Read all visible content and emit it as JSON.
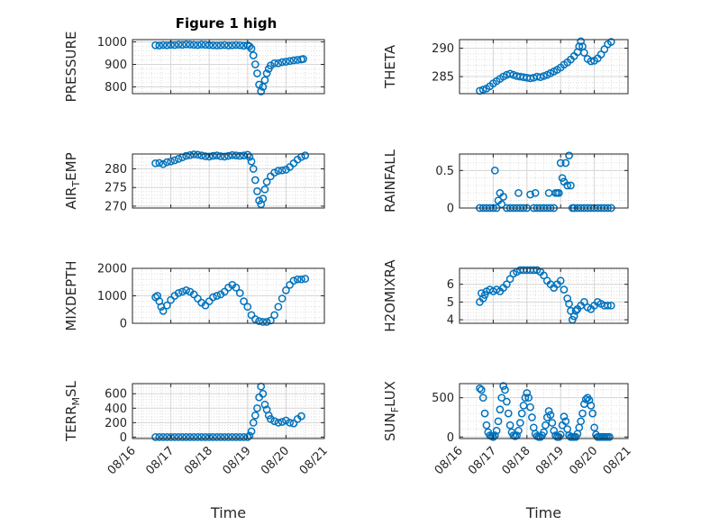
{
  "colors": {
    "marker": "#0072BD",
    "axis": "#262626",
    "grid": "#d6d6d6"
  },
  "chart_data": [
    {
      "type": "scatter",
      "title": "Figure 1 high",
      "ylabel": "PRESSURE",
      "ylim": [
        770,
        1010
      ],
      "yticks": [
        800,
        900,
        1000
      ],
      "ytick_labels": [
        "800",
        "900",
        "1000"
      ],
      "xlim": [
        "08/16",
        "08/21"
      ],
      "xtick_labels": [
        "08/16",
        "08/17",
        "08/18",
        "08/19",
        "08/20",
        "08/21"
      ],
      "xlabel": "",
      "grid": true,
      "minor_grid": true,
      "x": [
        16.6,
        16.7,
        16.8,
        16.9,
        17.0,
        17.1,
        17.2,
        17.3,
        17.4,
        17.5,
        17.6,
        17.7,
        17.8,
        17.9,
        18.0,
        18.1,
        18.2,
        18.3,
        18.4,
        18.5,
        18.6,
        18.7,
        18.8,
        18.9,
        19.0,
        19.05,
        19.1,
        19.15,
        19.2,
        19.25,
        19.3,
        19.35,
        19.4,
        19.45,
        19.5,
        19.55,
        19.6,
        19.7,
        19.8,
        19.9,
        20.0,
        20.1,
        20.2,
        20.3,
        20.4,
        20.45
      ],
      "y": [
        985,
        984,
        986,
        985,
        987,
        986,
        988,
        987,
        989,
        988,
        987,
        986,
        988,
        987,
        986,
        985,
        984,
        985,
        986,
        984,
        985,
        986,
        985,
        983,
        985,
        980,
        970,
        940,
        900,
        860,
        810,
        780,
        800,
        830,
        860,
        880,
        895,
        905,
        905,
        910,
        912,
        915,
        918,
        920,
        922,
        924
      ]
    },
    {
      "type": "scatter",
      "ylabel": "THETA",
      "ylim": [
        282,
        291.5
      ],
      "yticks": [
        285,
        290
      ],
      "ytick_labels": [
        "285",
        "290"
      ],
      "xlim": [
        "08/16",
        "08/21"
      ],
      "xtick_labels": [
        "08/16",
        "08/17",
        "08/18",
        "08/19",
        "08/20",
        "08/21"
      ],
      "xlabel": "",
      "grid": true,
      "minor_grid": true,
      "x": [
        16.6,
        16.7,
        16.8,
        16.9,
        17.0,
        17.1,
        17.2,
        17.3,
        17.4,
        17.5,
        17.6,
        17.7,
        17.8,
        17.9,
        18.0,
        18.1,
        18.2,
        18.3,
        18.4,
        18.5,
        18.6,
        18.7,
        18.8,
        18.9,
        19.0,
        19.1,
        19.2,
        19.3,
        19.4,
        19.5,
        19.55,
        19.6,
        19.65,
        19.7,
        19.8,
        19.9,
        20.0,
        20.1,
        20.2,
        20.3,
        20.4,
        20.5
      ],
      "y": [
        282.5,
        282.7,
        282.9,
        283.3,
        283.8,
        284.2,
        284.6,
        285.0,
        285.3,
        285.5,
        285.3,
        285.1,
        285.0,
        284.9,
        284.8,
        284.7,
        284.8,
        285.0,
        284.9,
        285.1,
        285.3,
        285.6,
        285.9,
        286.2,
        286.6,
        287.1,
        287.5,
        288.0,
        288.6,
        289.3,
        290.3,
        291.2,
        290.3,
        289.2,
        288.1,
        287.7,
        287.8,
        288.2,
        288.9,
        289.8,
        290.7,
        291.1
      ]
    },
    {
      "type": "scatter",
      "ylabel": "AIR_TEMP",
      "ylabel_sub": "T",
      "ylim": [
        269.5,
        284
      ],
      "yticks": [
        270,
        275,
        280
      ],
      "ytick_labels": [
        "270",
        "275",
        "280"
      ],
      "xlim": [
        "08/16",
        "08/21"
      ],
      "xtick_labels": [
        "08/16",
        "08/17",
        "08/18",
        "08/19",
        "08/20",
        "08/21"
      ],
      "xlabel": "",
      "grid": true,
      "minor_grid": true,
      "x": [
        16.6,
        16.7,
        16.8,
        16.9,
        17.0,
        17.1,
        17.2,
        17.3,
        17.4,
        17.5,
        17.6,
        17.7,
        17.8,
        17.9,
        18.0,
        18.1,
        18.2,
        18.3,
        18.4,
        18.5,
        18.6,
        18.7,
        18.8,
        18.9,
        19.0,
        19.05,
        19.1,
        19.15,
        19.2,
        19.25,
        19.3,
        19.35,
        19.4,
        19.45,
        19.5,
        19.6,
        19.7,
        19.8,
        19.9,
        20.0,
        20.1,
        20.2,
        20.3,
        20.4,
        20.5
      ],
      "y": [
        281.5,
        281.6,
        281.3,
        281.8,
        282.0,
        282.3,
        282.7,
        283.1,
        283.5,
        283.7,
        283.9,
        283.8,
        283.6,
        283.4,
        283.3,
        283.5,
        283.6,
        283.4,
        283.3,
        283.5,
        283.7,
        283.6,
        283.5,
        283.6,
        283.8,
        283.2,
        282.0,
        280.0,
        277.0,
        274.0,
        271.5,
        270.5,
        272.0,
        274.5,
        276.5,
        278.0,
        279.0,
        279.5,
        279.6,
        279.8,
        280.5,
        281.5,
        282.5,
        283.2,
        283.6
      ]
    },
    {
      "type": "scatter",
      "ylabel": "RAINFALL",
      "ylim": [
        0,
        0.72
      ],
      "yticks": [
        0,
        0.5
      ],
      "ytick_labels": [
        "0",
        "0.5"
      ],
      "xlim": [
        "08/16",
        "08/21"
      ],
      "xtick_labels": [
        "08/16",
        "08/17",
        "08/18",
        "08/19",
        "08/20",
        "08/21"
      ],
      "xlabel": "",
      "grid": true,
      "minor_grid": true,
      "x": [
        16.6,
        16.7,
        16.8,
        16.9,
        17.0,
        17.05,
        17.1,
        17.15,
        17.2,
        17.25,
        17.3,
        17.4,
        17.5,
        17.6,
        17.7,
        17.75,
        17.8,
        17.9,
        18.0,
        18.1,
        18.2,
        18.25,
        18.3,
        18.4,
        18.5,
        18.6,
        18.65,
        18.7,
        18.8,
        18.85,
        18.9,
        18.95,
        19.0,
        19.05,
        19.1,
        19.15,
        19.2,
        19.25,
        19.3,
        19.35,
        19.4,
        19.5,
        19.6,
        19.7,
        19.8,
        19.9,
        20.0,
        20.1,
        20.2,
        20.3,
        20.4,
        20.5
      ],
      "y": [
        0,
        0,
        0,
        0,
        0,
        0.5,
        0,
        0.1,
        0.2,
        0.05,
        0.15,
        0,
        0,
        0,
        0,
        0.2,
        0,
        0,
        0,
        0.18,
        0,
        0.2,
        0,
        0,
        0,
        0,
        0.2,
        0,
        0,
        0.2,
        0.2,
        0.2,
        0.6,
        0.4,
        0.35,
        0.6,
        0.3,
        0.7,
        0.3,
        0,
        0,
        0,
        0,
        0,
        0,
        0,
        0,
        0,
        0,
        0,
        0,
        0
      ]
    },
    {
      "type": "scatter",
      "ylabel": "MIXDEPTH",
      "ylim": [
        0,
        2000
      ],
      "yticks": [
        0,
        1000,
        2000
      ],
      "ytick_labels": [
        "0",
        "1000",
        "2000"
      ],
      "xlim": [
        "08/16",
        "08/21"
      ],
      "xtick_labels": [
        "08/16",
        "08/17",
        "08/18",
        "08/19",
        "08/20",
        "08/21"
      ],
      "xlabel": "",
      "grid": true,
      "minor_grid": true,
      "x": [
        16.6,
        16.65,
        16.7,
        16.75,
        16.8,
        16.9,
        17.0,
        17.1,
        17.2,
        17.3,
        17.4,
        17.5,
        17.6,
        17.7,
        17.8,
        17.9,
        18.0,
        18.1,
        18.2,
        18.3,
        18.4,
        18.5,
        18.6,
        18.7,
        18.8,
        18.9,
        19.0,
        19.1,
        19.2,
        19.3,
        19.4,
        19.5,
        19.6,
        19.7,
        19.8,
        19.9,
        20.0,
        20.1,
        20.2,
        20.3,
        20.4,
        20.5
      ],
      "y": [
        950,
        1000,
        800,
        600,
        450,
        650,
        850,
        1000,
        1100,
        1150,
        1200,
        1150,
        1050,
        900,
        750,
        650,
        800,
        950,
        1000,
        1050,
        1150,
        1300,
        1400,
        1300,
        1100,
        800,
        600,
        300,
        150,
        80,
        50,
        50,
        100,
        300,
        600,
        900,
        1200,
        1400,
        1550,
        1600,
        1600,
        1620
      ]
    },
    {
      "type": "scatter",
      "ylabel": "H2OMIXRA",
      "ylim": [
        3.8,
        6.9
      ],
      "yticks": [
        4,
        5,
        6
      ],
      "ytick_labels": [
        "4",
        "5",
        "6"
      ],
      "xlim": [
        "08/16",
        "08/21"
      ],
      "xtick_labels": [
        "08/16",
        "08/17",
        "08/18",
        "08/19",
        "08/20",
        "08/21"
      ],
      "xlabel": "",
      "grid": true,
      "minor_grid": true,
      "x": [
        16.6,
        16.65,
        16.7,
        16.75,
        16.8,
        16.9,
        17.0,
        17.1,
        17.2,
        17.3,
        17.4,
        17.5,
        17.6,
        17.7,
        17.8,
        17.9,
        18.0,
        18.1,
        18.2,
        18.3,
        18.4,
        18.5,
        18.6,
        18.7,
        18.8,
        18.9,
        19.0,
        19.1,
        19.2,
        19.25,
        19.3,
        19.35,
        19.4,
        19.45,
        19.5,
        19.6,
        19.7,
        19.8,
        19.9,
        20.0,
        20.1,
        20.2,
        20.3,
        20.4,
        20.5
      ],
      "y": [
        5.0,
        5.5,
        5.2,
        5.4,
        5.6,
        5.7,
        5.6,
        5.7,
        5.6,
        5.8,
        6.0,
        6.3,
        6.6,
        6.7,
        6.8,
        6.8,
        6.8,
        6.8,
        6.8,
        6.8,
        6.7,
        6.5,
        6.2,
        6.0,
        5.8,
        6.0,
        6.2,
        5.7,
        5.2,
        4.9,
        4.5,
        4.0,
        4.2,
        4.5,
        4.6,
        4.8,
        5.0,
        4.7,
        4.6,
        4.8,
        5.0,
        4.9,
        4.8,
        4.8,
        4.8
      ]
    },
    {
      "type": "scatter",
      "ylabel": "TERR_MSL",
      "ylabel_sub": "M",
      "ylim": [
        -20,
        740
      ],
      "yticks": [
        0,
        200,
        400,
        600
      ],
      "ytick_labels": [
        "0",
        "200",
        "400",
        "600"
      ],
      "xlim": [
        "08/16",
        "08/21"
      ],
      "xtick_labels": [
        "08/16",
        "08/17",
        "08/18",
        "08/19",
        "08/20",
        "08/21"
      ],
      "xlabel": "Time",
      "grid": true,
      "minor_grid": true,
      "x": [
        16.6,
        16.7,
        16.8,
        16.9,
        17.0,
        17.1,
        17.2,
        17.3,
        17.4,
        17.5,
        17.6,
        17.7,
        17.8,
        17.9,
        18.0,
        18.1,
        18.2,
        18.3,
        18.4,
        18.5,
        18.6,
        18.7,
        18.8,
        18.9,
        19.0,
        19.05,
        19.1,
        19.15,
        19.2,
        19.25,
        19.3,
        19.35,
        19.4,
        19.45,
        19.5,
        19.55,
        19.6,
        19.7,
        19.8,
        19.9,
        20.0,
        20.1,
        20.2,
        20.3,
        20.4
      ],
      "y": [
        0,
        0,
        0,
        0,
        0,
        0,
        0,
        0,
        0,
        0,
        0,
        0,
        0,
        0,
        0,
        0,
        0,
        0,
        0,
        0,
        0,
        0,
        0,
        0,
        0,
        20,
        80,
        200,
        300,
        400,
        550,
        700,
        600,
        450,
        380,
        300,
        250,
        220,
        200,
        210,
        230,
        200,
        190,
        250,
        290
      ]
    },
    {
      "type": "scatter",
      "ylabel": "SUN_FLUX",
      "ylabel_sub": "F",
      "ylim": [
        -20,
        680
      ],
      "yticks": [
        0,
        500
      ],
      "ytick_labels": [
        "0",
        "500"
      ],
      "xlim": [
        "08/16",
        "08/21"
      ],
      "xtick_labels": [
        "08/16",
        "08/17",
        "08/18",
        "08/19",
        "08/20",
        "08/21"
      ],
      "xlabel": "Time",
      "grid": true,
      "minor_grid": true,
      "x": [
        16.6,
        16.65,
        16.7,
        16.75,
        16.8,
        16.85,
        16.9,
        16.95,
        17.0,
        17.05,
        17.1,
        17.15,
        17.2,
        17.25,
        17.3,
        17.35,
        17.4,
        17.45,
        17.5,
        17.55,
        17.6,
        17.65,
        17.7,
        17.75,
        17.8,
        17.85,
        17.9,
        17.95,
        18.0,
        18.05,
        18.1,
        18.15,
        18.2,
        18.25,
        18.3,
        18.35,
        18.4,
        18.45,
        18.5,
        18.55,
        18.6,
        18.65,
        18.7,
        18.75,
        18.8,
        18.85,
        18.9,
        18.95,
        19.0,
        19.05,
        19.1,
        19.15,
        19.2,
        19.25,
        19.3,
        19.35,
        19.4,
        19.45,
        19.5,
        19.55,
        19.6,
        19.65,
        19.7,
        19.75,
        19.8,
        19.85,
        19.9,
        19.95,
        20.0,
        20.05,
        20.1,
        20.15,
        20.2,
        20.25,
        20.3,
        20.35,
        20.4,
        20.45
      ],
      "y": [
        620,
        600,
        500,
        300,
        150,
        60,
        20,
        10,
        0,
        20,
        80,
        200,
        350,
        500,
        650,
        600,
        450,
        300,
        150,
        60,
        20,
        10,
        20,
        80,
        180,
        300,
        400,
        500,
        560,
        500,
        380,
        250,
        120,
        40,
        10,
        0,
        0,
        20,
        60,
        150,
        250,
        330,
        280,
        180,
        80,
        20,
        0,
        0,
        30,
        150,
        260,
        200,
        100,
        20,
        0,
        0,
        0,
        0,
        40,
        120,
        200,
        300,
        420,
        480,
        500,
        470,
        400,
        300,
        120,
        30,
        0,
        0,
        0,
        0,
        0,
        0,
        0,
        0
      ]
    }
  ]
}
